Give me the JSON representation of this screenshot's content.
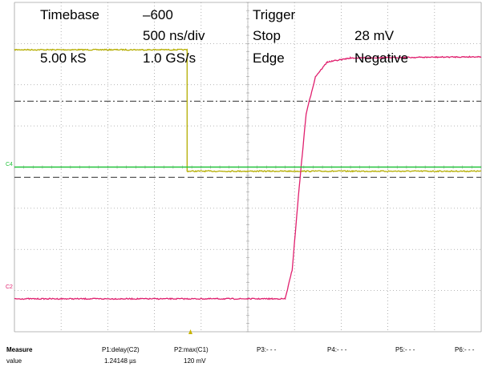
{
  "header": {
    "timebase_label": "Timebase",
    "timebase_value": "–600",
    "timebase_div": "500 ns/div",
    "samples": "5.00 kS",
    "sample_rate": "1.0 GS/s",
    "trigger_label": "Trigger",
    "trigger_mode": "Stop",
    "trigger_level": "28 mV",
    "trigger_type": "Edge",
    "trigger_slope": "Negative"
  },
  "channels": {
    "c4_label": "C4",
    "c2_label": "C2"
  },
  "colors": {
    "c1": "#b5ad00",
    "c2": "#e0206e",
    "c4": "#22c33a",
    "grid": "#a0a0a0",
    "trigger_marker": "#c8b400"
  },
  "measure": {
    "title": "Measure",
    "row_label": "value",
    "params": [
      {
        "name": "P1:delay(C2)",
        "value": "1.24148 µs"
      },
      {
        "name": "P2:max(C1)",
        "value": "120 mV"
      },
      {
        "name": "P3:- - -",
        "value": ""
      },
      {
        "name": "P4:- - -",
        "value": ""
      },
      {
        "name": "P5:- - -",
        "value": ""
      },
      {
        "name": "P6:- - -",
        "value": ""
      }
    ]
  },
  "chart_data": {
    "type": "line",
    "x_divisions": 10,
    "y_divisions": 8,
    "grid": true,
    "xlim_div": [
      0,
      10
    ],
    "ylim_div": [
      -4,
      4
    ],
    "series": [
      {
        "name": "C1",
        "color": "#b5ad00",
        "points": [
          [
            0,
            2.85
          ],
          [
            3.7,
            2.85
          ],
          [
            3.7,
            -0.1
          ],
          [
            10,
            -0.1
          ]
        ]
      },
      {
        "name": "C2",
        "color": "#e0206e",
        "points": [
          [
            0,
            -3.2
          ],
          [
            5.8,
            -3.2
          ],
          [
            5.95,
            -2.5
          ],
          [
            6.1,
            -0.5
          ],
          [
            6.25,
            1.3
          ],
          [
            6.45,
            2.2
          ],
          [
            6.7,
            2.55
          ],
          [
            7.2,
            2.65
          ],
          [
            10,
            2.68
          ]
        ]
      },
      {
        "name": "C4",
        "color": "#22c33a",
        "points": [
          [
            0,
            0.0
          ],
          [
            10,
            0.0
          ]
        ]
      }
    ],
    "reference_lines": [
      {
        "style": "dash-dot",
        "y_div": 1.6
      },
      {
        "style": "dashed",
        "y_div": -0.25
      }
    ]
  }
}
